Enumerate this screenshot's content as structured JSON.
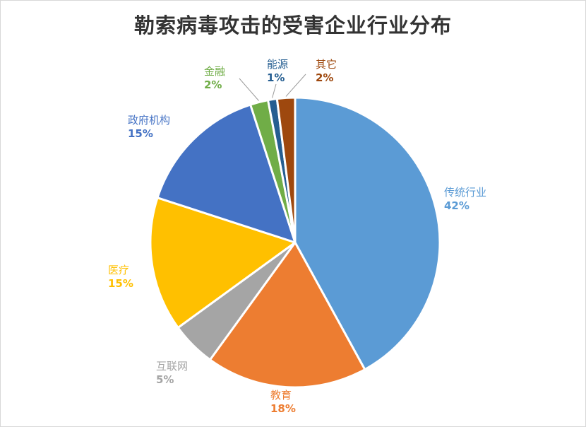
{
  "chart_data": {
    "type": "pie",
    "title": "勒索病毒攻击的受害企业行业分布",
    "slices": [
      {
        "name": "传统行业",
        "value": 42,
        "label": "42%",
        "color": "#5b9bd5"
      },
      {
        "name": "教育",
        "value": 18,
        "label": "18%",
        "color": "#ed7d31"
      },
      {
        "name": "互联网",
        "value": 5,
        "label": "5%",
        "color": "#a5a5a5"
      },
      {
        "name": "医疗",
        "value": 15,
        "label": "15%",
        "color": "#ffc000"
      },
      {
        "name": "政府机构",
        "value": 15,
        "label": "15%",
        "color": "#4472c4"
      },
      {
        "name": "金融",
        "value": 2,
        "label": "2%",
        "color": "#70ad47"
      },
      {
        "name": "能源",
        "value": 1,
        "label": "1%",
        "color": "#255e91"
      },
      {
        "name": "其它",
        "value": 2,
        "label": "2%",
        "color": "#9e480e"
      }
    ]
  }
}
